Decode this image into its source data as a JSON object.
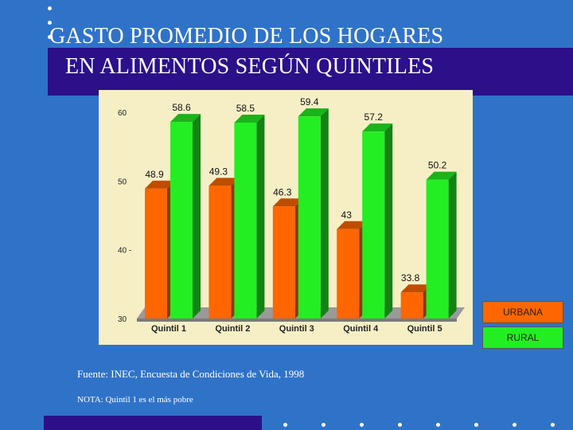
{
  "title": {
    "line1": "GASTO PROMEDIO DE LOS HOGARES",
    "line2": "EN ALIMENTOS SEGÚN QUINTILES"
  },
  "colors": {
    "background": "#2f73c9",
    "title_band": "#2b108a",
    "chart_bg": "#f6efc6",
    "urbana": "#ff6600",
    "rural": "#22ee22"
  },
  "chart_data": {
    "type": "bar",
    "categories": [
      "Quintil 1",
      "Quintil 2",
      "Quintil 3",
      "Quintil 4",
      "Quintil 5"
    ],
    "series": [
      {
        "name": "URBANA",
        "values": [
          48.9,
          49.3,
          46.3,
          43,
          33.8
        ]
      },
      {
        "name": "RURAL",
        "values": [
          58.6,
          58.5,
          59.4,
          57.2,
          50.2
        ]
      }
    ],
    "value_labels": {
      "URBANA": [
        "48.9",
        "49.3",
        "46.3",
        "43",
        "33.8"
      ],
      "RURAL": [
        "58.6",
        "58.5",
        "59.4",
        "57.2",
        "50.2"
      ]
    },
    "y_ticks": [
      "30",
      "40 -",
      "50",
      "60"
    ],
    "ylim": [
      30,
      60
    ],
    "legend_position": "right",
    "grid": false
  },
  "legend": {
    "urbana": "URBANA",
    "rural": "RURAL"
  },
  "source": "Fuente:  INEC, Encuesta de Condiciones de Vida, 1998",
  "note": "NOTA: Quintil 1 es el más pobre"
}
